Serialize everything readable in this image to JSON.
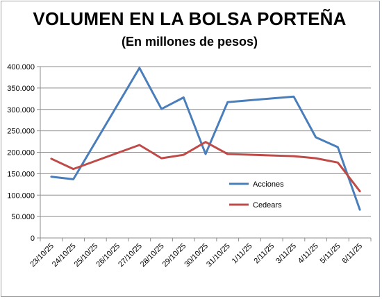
{
  "chart_data": {
    "type": "line",
    "title": "VOLUMEN EN LA BOLSA PORTEÑA",
    "subtitle": "(En millones de pesos)",
    "categories": [
      "23/10/25",
      "24/10/25",
      "25/10/25",
      "26/10/25",
      "27/10/25",
      "28/10/25",
      "29/10/25",
      "30/10/25",
      "31/10/25",
      "1/11/25",
      "2/11/25",
      "3/11/25",
      "4/11/25",
      "5/11/25",
      "6/11/25"
    ],
    "series": [
      {
        "name": "Acciones",
        "color": "#4a7ebb",
        "values": [
          143000,
          137000,
          null,
          null,
          397000,
          301000,
          328000,
          196000,
          317000,
          null,
          null,
          330000,
          235000,
          212000,
          66000
        ]
      },
      {
        "name": "Cedears",
        "color": "#be4b48",
        "values": [
          185000,
          161000,
          null,
          null,
          217000,
          186000,
          194000,
          224000,
          196000,
          null,
          null,
          191000,
          186000,
          176000,
          109000
        ]
      }
    ],
    "ylim": [
      0,
      400000
    ],
    "yticks": [
      0,
      50000,
      100000,
      150000,
      200000,
      250000,
      300000,
      350000,
      400000
    ],
    "ytick_labels": [
      "0",
      "50.000",
      "100.000",
      "150.000",
      "200.000",
      "250.000",
      "300.000",
      "350.000",
      "400.000"
    ],
    "grid": true,
    "legend": "inside-right"
  }
}
